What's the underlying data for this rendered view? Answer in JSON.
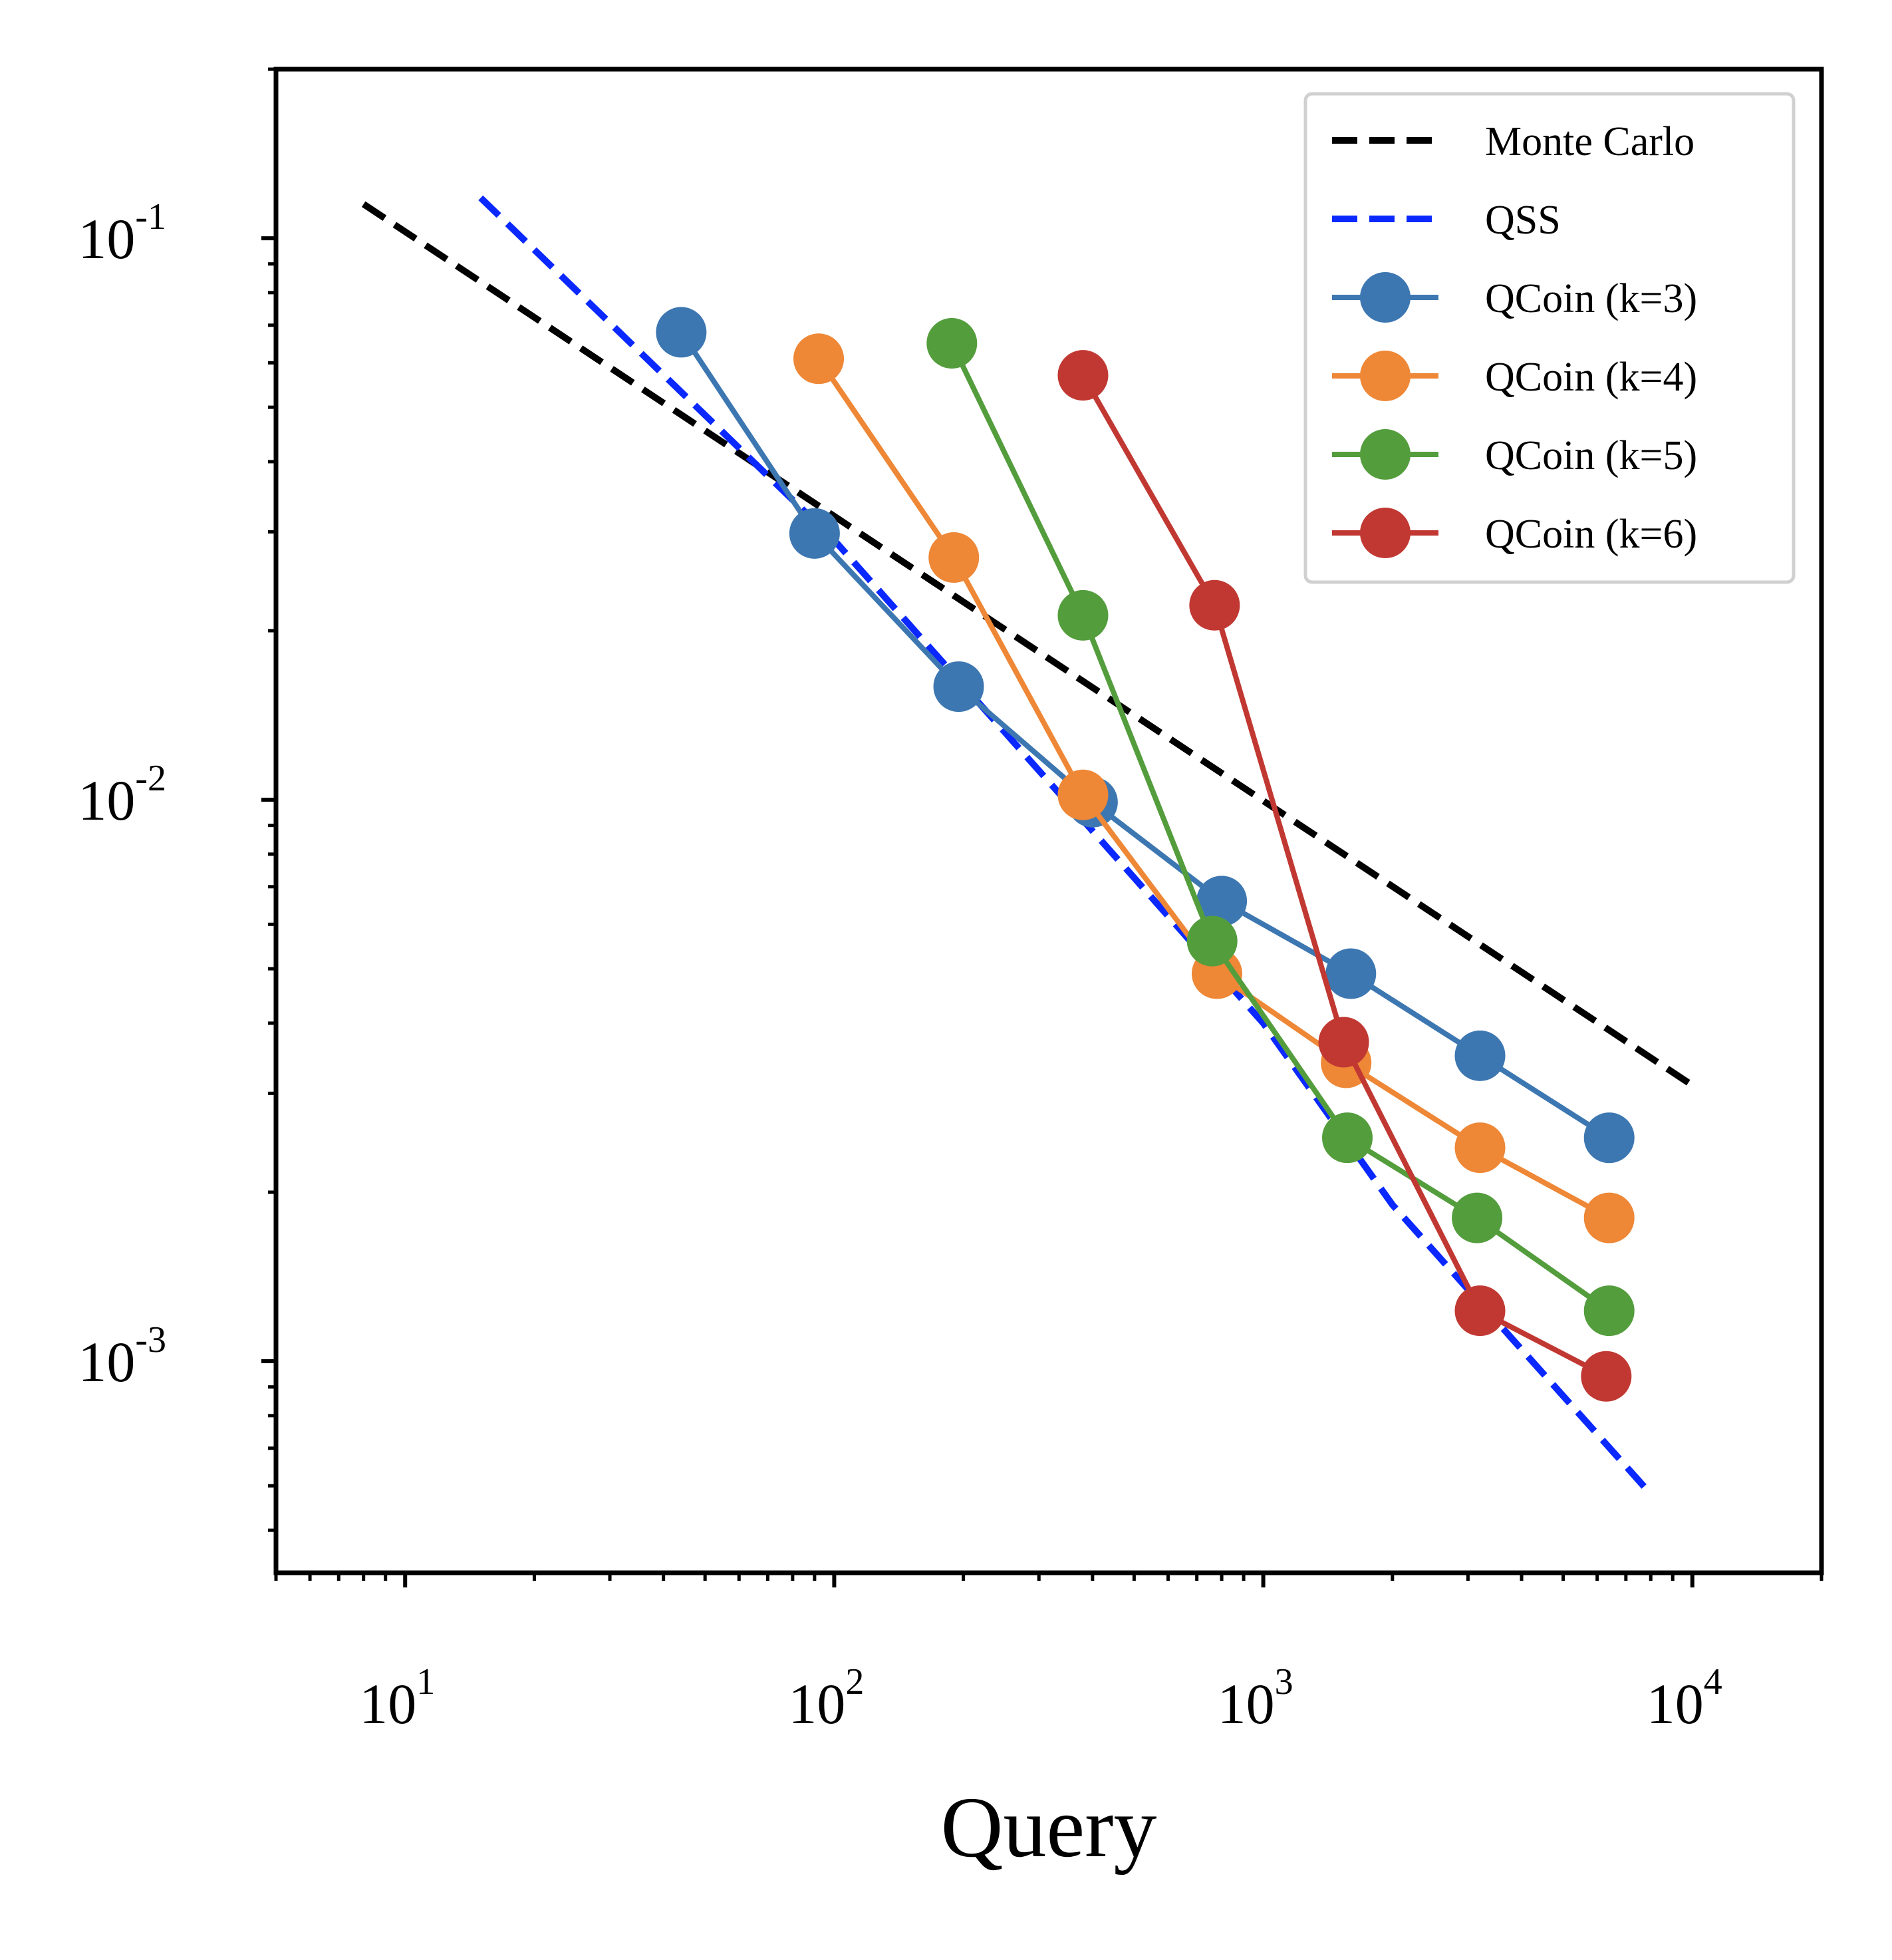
{
  "chart_data": {
    "type": "line",
    "title": "",
    "xlabel": "Query",
    "ylabel": "",
    "xscale": "log",
    "yscale": "log",
    "xlim": [
      5,
      20000
    ],
    "ylim": [
      0.00042,
      0.2
    ],
    "grid": false,
    "legend_position": "top-right",
    "x_ticks": [
      {
        "value": 10,
        "base": "10",
        "exp": "1"
      },
      {
        "value": 100,
        "base": "10",
        "exp": "2"
      },
      {
        "value": 1000,
        "base": "10",
        "exp": "3"
      },
      {
        "value": 10000,
        "base": "10",
        "exp": "4"
      }
    ],
    "y_ticks": [
      {
        "value": 0.1,
        "base": "10",
        "exp": "-1"
      },
      {
        "value": 0.01,
        "base": "10",
        "exp": "-2"
      },
      {
        "value": 0.001,
        "base": "10",
        "exp": "-3"
      }
    ],
    "series": [
      {
        "name": "Monte Carlo",
        "style": "dashed",
        "color": "#000000",
        "markers": false,
        "points": [
          [
            8,
            0.115
          ],
          [
            10000,
            0.0031
          ]
        ]
      },
      {
        "name": "QSS",
        "style": "dashed",
        "color": "#0a28ff",
        "markers": false,
        "points": [
          [
            15,
            0.118
          ],
          [
            100,
            0.029
          ],
          [
            1000,
            0.004
          ],
          [
            2000,
            0.0019
          ],
          [
            8000,
            0.00058
          ]
        ]
      },
      {
        "name": "QCoin (k=3)",
        "style": "solid",
        "color": "#3d77b1",
        "markers": true,
        "points": [
          [
            44,
            0.068
          ],
          [
            90,
            0.0298
          ],
          [
            195,
            0.0159
          ],
          [
            400,
            0.0099
          ],
          [
            800,
            0.0066
          ],
          [
            1600,
            0.0049
          ],
          [
            3200,
            0.0035
          ],
          [
            6400,
            0.0025
          ]
        ]
      },
      {
        "name": "QCoin (k=4)",
        "style": "solid",
        "color": "#ee8736",
        "markers": true,
        "points": [
          [
            92,
            0.061
          ],
          [
            190,
            0.027
          ],
          [
            380,
            0.0102
          ],
          [
            780,
            0.0049
          ],
          [
            1560,
            0.0034
          ],
          [
            3200,
            0.0024
          ],
          [
            6400,
            0.0018
          ]
        ]
      },
      {
        "name": "QCoin (k=5)",
        "style": "solid",
        "color": "#549d3d",
        "markers": true,
        "points": [
          [
            188,
            0.065
          ],
          [
            380,
            0.0213
          ],
          [
            760,
            0.0056
          ],
          [
            1570,
            0.0025
          ],
          [
            3150,
            0.0018
          ],
          [
            6400,
            0.00123
          ]
        ]
      },
      {
        "name": "QCoin (k=6)",
        "style": "solid",
        "color": "#c13832",
        "markers": true,
        "points": [
          [
            380,
            0.057
          ],
          [
            770,
            0.0222
          ],
          [
            1540,
            0.0037
          ],
          [
            3200,
            0.00123
          ],
          [
            6300,
            0.00094
          ]
        ]
      }
    ]
  }
}
